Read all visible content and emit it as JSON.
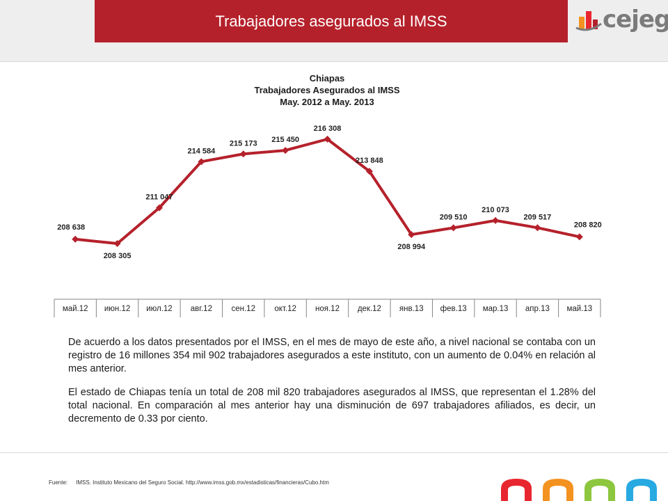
{
  "header": {
    "title": "Trabajadores asegurados al IMSS",
    "logo_text": "cejeg"
  },
  "chart_data": {
    "type": "line",
    "title": "Chiapas",
    "subtitle": "Trabajadores Asegurados al IMSS",
    "period": "May. 2012 a May. 2013",
    "categories": [
      "май.12",
      "июн.12",
      "июл.12",
      "авг.12",
      "сен.12",
      "окт.12",
      "ноя.12",
      "дек.12",
      "янв.13",
      "фев.13",
      "мар.13",
      "апр.13",
      "май.13"
    ],
    "series": [
      {
        "values": [
          208638,
          208305,
          211047,
          214584,
          215173,
          215450,
          216308,
          213848,
          208994,
          209510,
          210073,
          209517,
          208820
        ],
        "labels": [
          "208 638",
          "208 305",
          "211 047",
          "214 584",
          "215 173",
          "215 450",
          "216 308",
          "213 848",
          "208 994",
          "209 510",
          "210 073",
          "209 517",
          "208 820"
        ],
        "color": "#b5212b"
      }
    ],
    "xlabel": "",
    "ylabel": "",
    "ylim": [
      204000,
      218000
    ],
    "grid": false,
    "legend": "none"
  },
  "text": {
    "paragraph1": "De acuerdo a los datos presentados por el IMSS, en el mes de mayo de este año, a nivel nacional se contaba con un registro de 16 millones 354 mil 902 trabajadores asegurados a este instituto, con un aumento de 0.04% en relación al mes anterior.",
    "paragraph2": "El estado de Chiapas tenía un total de 208 mil 820 trabajadores asegurados al IMSS, que representan el 1.28% del total nacional. En comparación al mes anterior hay una disminución de 697 trabajadores afiliados, es decir, un decremento de 0.33 por ciento."
  },
  "footer": {
    "source_label": "Fuente:",
    "source_text": "IMSS. Instituto Mexicano del Seguro Social. http://www.imss.gob.mx/estadisticas/financieras/Cubo.htm"
  },
  "colors": {
    "brand_red": "#b5212b",
    "deco": [
      "#e8262f",
      "#f39220",
      "#8dc63f",
      "#27a9e1"
    ]
  }
}
